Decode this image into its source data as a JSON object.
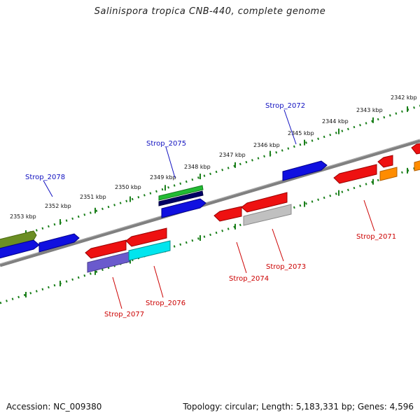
{
  "title": "Salinispora tropica CNB-440, complete genome",
  "footer": {
    "accession": "Accession: NC_009380",
    "topology": "Topology: circular; Length: 5,183,331 bp; Genes: 4,596"
  },
  "colors": {
    "backbone": "#808080",
    "ticks": "#1a7f1a",
    "forward_label": "#1010c0",
    "reverse_label": "#cc0000"
  },
  "scale_labels": [
    "2353 kbp",
    "2352 kbp",
    "2351 kbp",
    "2350 kbp",
    "2349 kbp",
    "2348 kbp",
    "2347 kbp",
    "2346 kbp",
    "2345 kbp",
    "2344 kbp",
    "2343 kbp",
    "2342 kbp"
  ],
  "gene_labels": {
    "forward": [
      "Strop_2078",
      "Strop_2075",
      "Strop_2072"
    ],
    "reverse": [
      "Strop_2077",
      "Strop_2076",
      "Strop_2074",
      "Strop_2073",
      "Strop_2071"
    ]
  }
}
